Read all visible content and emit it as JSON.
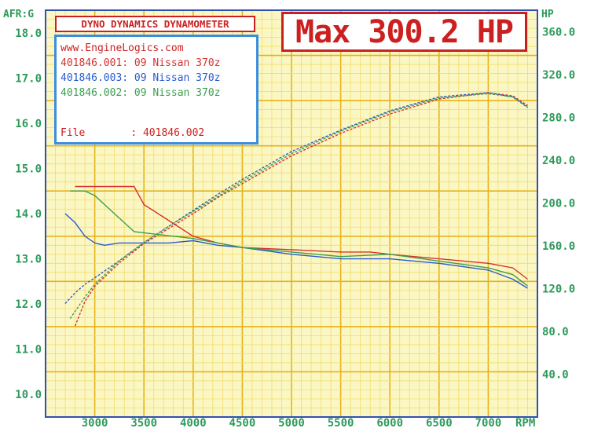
{
  "chart_data": {
    "type": "line",
    "title": "DYNO DYNAMICS DYNAMOMETER",
    "headline": "Max 300.2 HP",
    "site": "www.EngineLogics.com",
    "file_label": "File",
    "file_value": ": 401846.002",
    "xlabel": "RPM",
    "ylabel_left": "AFR:G",
    "ylabel_right": "HP",
    "xlim": [
      2500,
      7500
    ],
    "ylim_left": [
      9.5,
      18.5
    ],
    "ylim_right": [
      0,
      380
    ],
    "x_ticks": [
      3000,
      3500,
      4000,
      4500,
      5000,
      5500,
      6000,
      6500,
      7000
    ],
    "y_left_ticks": [
      10.0,
      11.0,
      12.0,
      13.0,
      14.0,
      15.0,
      16.0,
      17.0,
      18.0
    ],
    "y_right_ticks": [
      40.0,
      80.0,
      120.0,
      160.0,
      200.0,
      240.0,
      280.0,
      320.0,
      360.0
    ],
    "grid": true,
    "legend_position": "top-left",
    "series": [
      {
        "name": "401846.001: 09 Nissan 370z",
        "color": "#d93030",
        "hp": {
          "x": [
            2800,
            2900,
            3000,
            3250,
            3500,
            3750,
            4000,
            4250,
            4500,
            4750,
            5000,
            5500,
            6000,
            6500,
            7000,
            7250,
            7400
          ],
          "y": [
            85,
            108,
            122,
            144,
            162,
            176,
            190,
            205,
            218,
            231,
            244,
            265,
            283,
            297,
            303,
            300,
            291
          ]
        },
        "afr": {
          "x": [
            2800,
            2900,
            3000,
            3250,
            3400,
            3500,
            3750,
            4000,
            4250,
            4500,
            5000,
            5500,
            5800,
            6000,
            6500,
            7000,
            7250,
            7400
          ],
          "y": [
            14.6,
            14.6,
            14.6,
            14.6,
            14.6,
            14.2,
            13.85,
            13.5,
            13.35,
            13.25,
            13.2,
            13.15,
            13.15,
            13.1,
            13.0,
            12.9,
            12.8,
            12.55
          ]
        }
      },
      {
        "name": "401846.003: 09 Nissan 370z",
        "color": "#2a5ad0",
        "hp": {
          "x": [
            2700,
            2800,
            2900,
            3000,
            3250,
            3500,
            3750,
            4000,
            4250,
            4500,
            4750,
            5000,
            5500,
            6000,
            6500,
            7000,
            7250,
            7400
          ],
          "y": [
            106,
            116,
            124,
            130,
            146,
            163,
            178,
            193,
            208,
            222,
            235,
            248,
            268,
            286,
            299,
            303,
            299,
            289
          ]
        },
        "afr": {
          "x": [
            2700,
            2800,
            2900,
            3000,
            3100,
            3250,
            3500,
            3750,
            4000,
            4250,
            4500,
            5000,
            5500,
            6000,
            6500,
            7000,
            7250,
            7400
          ],
          "y": [
            14.0,
            13.8,
            13.5,
            13.35,
            13.3,
            13.35,
            13.35,
            13.35,
            13.4,
            13.3,
            13.25,
            13.1,
            13.0,
            13.0,
            12.9,
            12.75,
            12.55,
            12.35
          ]
        }
      },
      {
        "name": "401846.002: 09 Nissan 370z",
        "color": "#3aa050",
        "hp": {
          "x": [
            2750,
            2900,
            3000,
            3250,
            3500,
            3750,
            4000,
            4250,
            4500,
            4750,
            5000,
            5500,
            6000,
            6500,
            7000,
            7250,
            7400
          ],
          "y": [
            92,
            112,
            124,
            146,
            163,
            178,
            192,
            206,
            220,
            233,
            246,
            267,
            285,
            298,
            302,
            299,
            290
          ]
        },
        "afr": {
          "x": [
            2750,
            2900,
            3000,
            3200,
            3400,
            3600,
            3800,
            4000,
            4250,
            4500,
            5000,
            5500,
            6000,
            6500,
            7000,
            7250,
            7400
          ],
          "y": [
            14.5,
            14.5,
            14.4,
            14.0,
            13.6,
            13.55,
            13.5,
            13.45,
            13.35,
            13.25,
            13.15,
            13.05,
            13.1,
            12.95,
            12.8,
            12.65,
            12.4
          ]
        }
      }
    ]
  }
}
